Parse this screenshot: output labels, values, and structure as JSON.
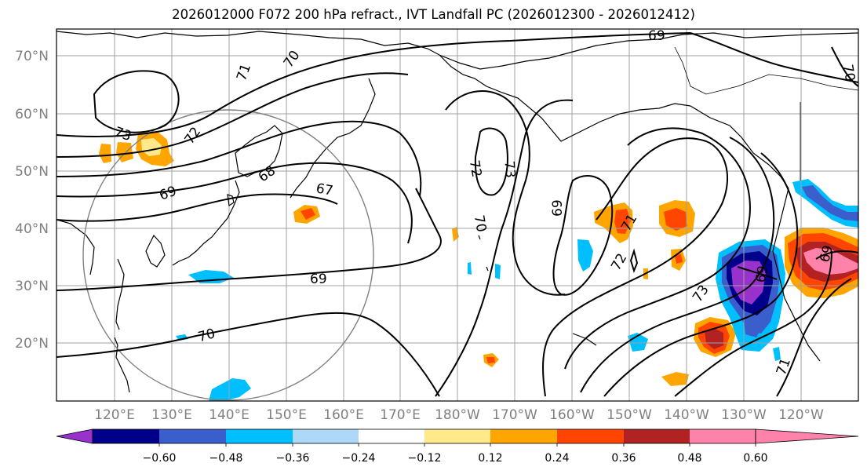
{
  "title": "2026012000 F072 200 hPa refract., IVT Landfall PC (2026012300 - 2026012412)",
  "lat_labels": [
    "70°N",
    "60°N",
    "50°N",
    "40°N",
    "30°N",
    "20°N"
  ],
  "lon_labels": [
    "120°E",
    "130°E",
    "140°E",
    "150°E",
    "160°E",
    "170°E",
    "180°W",
    "170°W",
    "160°W",
    "150°W",
    "140°W",
    "130°W",
    "120°W"
  ],
  "colorbar": {
    "tick_labels": [
      "−0.60",
      "−0.48",
      "−0.36",
      "−0.24",
      "−0.12",
      "0.12",
      "0.24",
      "0.36",
      "0.48",
      "0.60"
    ],
    "colors": [
      "#9932cc",
      "#00008b",
      "#3a5fcd",
      "#00bfff",
      "#add8f7",
      "#ffffff",
      "#ffe98a",
      "#ffa500",
      "#ff4500",
      "#b22222",
      "#ff82ab"
    ]
  },
  "contour_labels": [
    "69",
    "70",
    "71",
    "73",
    "72",
    "68",
    "69",
    "67",
    "69",
    "70",
    "72",
    "73",
    "70",
    "69",
    "71",
    "72",
    "73",
    "69",
    "71",
    "69",
    "70"
  ]
}
